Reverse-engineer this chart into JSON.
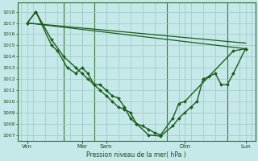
{
  "background_color": "#c5e8e8",
  "grid_color": "#9ec8c8",
  "line_color": "#1a5c1a",
  "ylim": [
    1006.5,
    1018.8
  ],
  "xlim": [
    -0.3,
    19.3
  ],
  "yticks": [
    1007,
    1008,
    1009,
    1010,
    1011,
    1012,
    1013,
    1014,
    1015,
    1016,
    1017,
    1018
  ],
  "xtick_positions": [
    0.5,
    5.0,
    7.0,
    13.5,
    18.5
  ],
  "xtick_labels": [
    "Ven",
    "Mar",
    "Sam",
    "Dim",
    "Lun"
  ],
  "xlabel": "Pression niveau de la mer( hPa )",
  "vlines": [
    3.5,
    6.0,
    12.0,
    17.0
  ],
  "series": [
    {
      "x": [
        0.5,
        1.2,
        2.5,
        3.5,
        4.5,
        5.0,
        5.5,
        6.0,
        6.5,
        7.0,
        7.5,
        8.0,
        8.5,
        9.0,
        9.5,
        10.5,
        11.5,
        12.5,
        13.0,
        13.5,
        14.0,
        14.5,
        15.0,
        15.5,
        16.0,
        16.5,
        17.0,
        17.5,
        18.5
      ],
      "y": [
        1017.0,
        1018.0,
        1015.5,
        1014.0,
        1013.0,
        1012.5,
        1012.0,
        1011.5,
        1011.0,
        1010.5,
        1010.0,
        1009.5,
        1009.3,
        1009.0,
        1008.0,
        1007.0,
        1006.9,
        1007.8,
        1008.5,
        1009.0,
        1009.5,
        1010.0,
        1012.0,
        1012.2,
        1012.5,
        1011.5,
        1011.5,
        1012.5,
        1014.7
      ],
      "marker": "D",
      "markersize": 2.0,
      "lw": 1.0
    },
    {
      "x": [
        0.5,
        1.2,
        2.5,
        3.0,
        3.8,
        4.5,
        5.0,
        5.5,
        6.0,
        6.5,
        7.0,
        7.5,
        8.0,
        8.5,
        9.0,
        9.5,
        10.0,
        10.5,
        11.0,
        11.5,
        12.5,
        13.0,
        13.5,
        17.5,
        18.5
      ],
      "y": [
        1017.0,
        1018.0,
        1015.0,
        1014.5,
        1013.0,
        1012.5,
        1013.0,
        1012.5,
        1011.5,
        1011.5,
        1011.0,
        1010.5,
        1010.3,
        1009.5,
        1008.5,
        1008.0,
        1007.8,
        1007.5,
        1007.2,
        1007.0,
        1008.5,
        1009.8,
        1010.0,
        1014.5,
        1014.7
      ],
      "marker": "D",
      "markersize": 2.0,
      "lw": 1.0
    },
    {
      "x": [
        0.5,
        18.5
      ],
      "y": [
        1017.0,
        1015.2
      ],
      "marker": null,
      "markersize": 0,
      "lw": 0.9
    },
    {
      "x": [
        0.5,
        18.5
      ],
      "y": [
        1017.0,
        1014.7
      ],
      "marker": null,
      "markersize": 0,
      "lw": 0.9
    }
  ]
}
